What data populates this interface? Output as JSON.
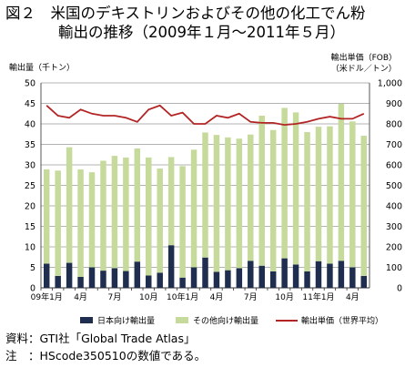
{
  "title_line1": "図２　米国のデキストリンおよびその他の化工でん粉",
  "title_line2": "輸出の推移（2009年１月～2011年５月）",
  "colors": {
    "domestic": "#1f2d4e",
    "other": "#c6da9b",
    "price": "#b32525",
    "grid": "#9a9a9a"
  },
  "chart_data": {
    "type": "bar",
    "title": "",
    "ylabel_left": "輸出量（千トン）",
    "ylabel_right": "輸出単価（FOB）\n（米ドル／トン）",
    "ylim_left": [
      0,
      50
    ],
    "ylim_right": [
      0,
      1000
    ],
    "yticks_left": [
      "0",
      "5",
      "10",
      "15",
      "20",
      "25",
      "30",
      "35",
      "40",
      "45",
      "50"
    ],
    "yticks_right": [
      "0",
      "100",
      "200",
      "300",
      "400",
      "500",
      "600",
      "700",
      "800",
      "900",
      "1,000"
    ],
    "x_tick_labels": [
      {
        "i": 0,
        "label": "09年1月"
      },
      {
        "i": 3,
        "label": "4月"
      },
      {
        "i": 6,
        "label": "7月"
      },
      {
        "i": 9,
        "label": "10月"
      },
      {
        "i": 12,
        "label": "10年1月"
      },
      {
        "i": 15,
        "label": "4月"
      },
      {
        "i": 18,
        "label": "7月"
      },
      {
        "i": 21,
        "label": "10月"
      },
      {
        "i": 24,
        "label": "11年1月"
      },
      {
        "i": 27,
        "label": "4月"
      }
    ],
    "grid": true,
    "legend_position": "bottom",
    "series": [
      {
        "name": "日本向け輸出量",
        "type": "stacked-bar",
        "axis": "left",
        "values": [
          5.9,
          2.9,
          6.1,
          2.7,
          5.0,
          4.2,
          4.8,
          4.1,
          6.4,
          3.0,
          3.7,
          10.4,
          2.5,
          5.0,
          7.4,
          3.9,
          4.3,
          4.8,
          6.6,
          5.4,
          4.0,
          7.2,
          5.7,
          4.0,
          6.5,
          5.9,
          6.6,
          5.0,
          2.9
        ]
      },
      {
        "name": "その他向け輸出量",
        "type": "stacked-bar",
        "axis": "left",
        "values": [
          23.0,
          25.7,
          28.2,
          26.2,
          23.2,
          26.8,
          27.4,
          27.7,
          27.6,
          28.8,
          25.4,
          21.5,
          27.2,
          28.7,
          30.5,
          33.4,
          32.4,
          31.6,
          30.8,
          36.6,
          34.5,
          36.7,
          37.1,
          34.0,
          32.8,
          33.5,
          38.3,
          35.6,
          34.2
        ]
      },
      {
        "name": "輸出単価（世界平均）",
        "type": "line",
        "axis": "right",
        "values": [
          890,
          840,
          830,
          870,
          850,
          840,
          840,
          830,
          810,
          870,
          890,
          840,
          855,
          800,
          800,
          840,
          830,
          850,
          810,
          805,
          805,
          795,
          800,
          810,
          825,
          835,
          825,
          825,
          850
        ]
      }
    ]
  },
  "notes": [
    "資料：GTI社「Global Trade Atlas」",
    "注　：HScode350510の数値である。"
  ]
}
